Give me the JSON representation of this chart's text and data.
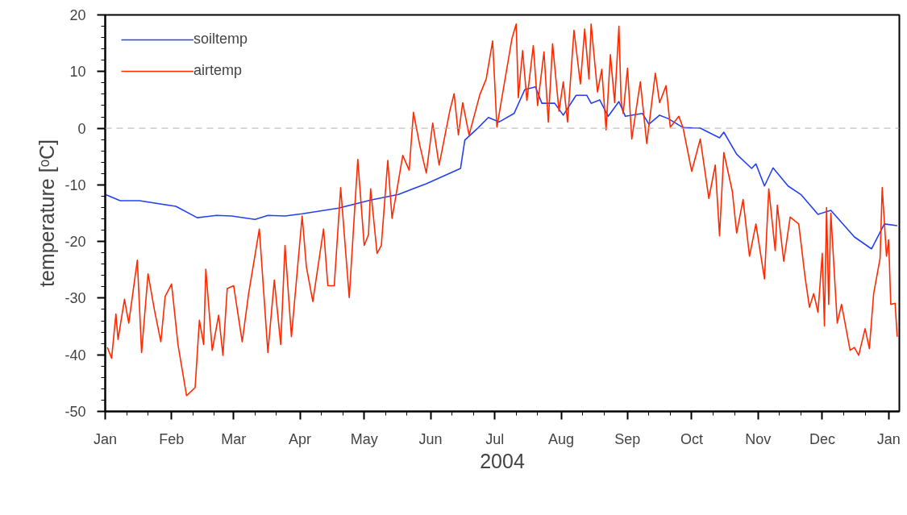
{
  "chart_data": {
    "type": "line",
    "xlabel": "2004",
    "ylabel": "temperature [ᵒC]",
    "xlim": [
      "2004-01-01",
      "2005-01-06"
    ],
    "ylim": [
      -50,
      20
    ],
    "xticks": [
      {
        "value": "2004-01-01",
        "label": "Jan"
      },
      {
        "value": "2004-01-11",
        "label": null
      },
      {
        "value": "2004-01-21",
        "label": null
      },
      {
        "value": "2004-02-01",
        "label": "Feb"
      },
      {
        "value": "2004-02-11",
        "label": null
      },
      {
        "value": "2004-02-21",
        "label": null
      },
      {
        "value": "2004-03-01",
        "label": "Mar"
      },
      {
        "value": "2004-03-11",
        "label": null
      },
      {
        "value": "2004-03-21",
        "label": null
      },
      {
        "value": "2004-04-01",
        "label": "Apr"
      },
      {
        "value": "2004-04-11",
        "label": null
      },
      {
        "value": "2004-04-21",
        "label": null
      },
      {
        "value": "2004-05-01",
        "label": "May"
      },
      {
        "value": "2004-05-11",
        "label": null
      },
      {
        "value": "2004-05-21",
        "label": null
      },
      {
        "value": "2004-06-01",
        "label": "Jun"
      },
      {
        "value": "2004-06-11",
        "label": null
      },
      {
        "value": "2004-06-21",
        "label": null
      },
      {
        "value": "2004-07-01",
        "label": "Jul"
      },
      {
        "value": "2004-07-11",
        "label": null
      },
      {
        "value": "2004-07-21",
        "label": null
      },
      {
        "value": "2004-08-01",
        "label": "Aug"
      },
      {
        "value": "2004-08-11",
        "label": null
      },
      {
        "value": "2004-08-21",
        "label": null
      },
      {
        "value": "2004-09-01",
        "label": "Sep"
      },
      {
        "value": "2004-09-11",
        "label": null
      },
      {
        "value": "2004-09-21",
        "label": null
      },
      {
        "value": "2004-10-01",
        "label": "Oct"
      },
      {
        "value": "2004-10-11",
        "label": null
      },
      {
        "value": "2004-10-21",
        "label": null
      },
      {
        "value": "2004-11-01",
        "label": "Nov"
      },
      {
        "value": "2004-11-11",
        "label": null
      },
      {
        "value": "2004-11-21",
        "label": null
      },
      {
        "value": "2004-12-01",
        "label": "Dec"
      },
      {
        "value": "2004-12-11",
        "label": null
      },
      {
        "value": "2004-12-21",
        "label": null
      },
      {
        "value": "2005-01-01",
        "label": "Jan"
      }
    ],
    "yticks": [
      -50,
      {
        "value": -48,
        "label": null
      },
      {
        "value": -46,
        "label": null
      },
      {
        "value": -44,
        "label": null
      },
      {
        "value": -42,
        "label": null
      },
      -40,
      {
        "value": -38,
        "label": null
      },
      {
        "value": -36,
        "label": null
      },
      {
        "value": -34,
        "label": null
      },
      {
        "value": -32,
        "label": null
      },
      -30,
      {
        "value": -28,
        "label": null
      },
      {
        "value": -26,
        "label": null
      },
      {
        "value": -24,
        "label": null
      },
      {
        "value": -22,
        "label": null
      },
      -20,
      {
        "value": -18,
        "label": null
      },
      {
        "value": -16,
        "label": null
      },
      {
        "value": -14,
        "label": null
      },
      {
        "value": -12,
        "label": null
      },
      -10,
      {
        "value": -8,
        "label": null
      },
      {
        "value": -6,
        "label": null
      },
      {
        "value": -4,
        "label": null
      },
      {
        "value": -2,
        "label": null
      },
      0,
      {
        "value": 2,
        "label": null
      },
      {
        "value": 4,
        "label": null
      },
      {
        "value": 6,
        "label": null
      },
      {
        "value": 8,
        "label": null
      },
      10,
      {
        "value": 12,
        "label": null
      },
      {
        "value": 14,
        "label": null
      },
      {
        "value": 16,
        "label": null
      },
      {
        "value": 18,
        "label": null
      },
      20
    ],
    "legend": "top left",
    "ref_lines": [
      {
        "axis": "y",
        "value": 0,
        "color": "#b0b0b0",
        "line_style": "dashed"
      }
    ],
    "series": [
      {
        "name": "soiltemp",
        "color": "#2440f5",
        "x": [
          "2004-01-01",
          "2004-01-08",
          "2004-01-17",
          "2004-02-03",
          "2004-02-13",
          "2004-02-22",
          "2004-02-29",
          "2004-03-11",
          "2004-03-17",
          "2004-03-25",
          "2004-04-02",
          "2004-04-19",
          "2004-05-04",
          "2004-05-17",
          "2004-05-30",
          "2004-06-15",
          "2004-06-17",
          "2004-06-23",
          "2004-06-28",
          "2004-07-03",
          "2004-07-10",
          "2004-07-15",
          "2004-07-20",
          "2004-07-23",
          "2004-07-29",
          "2004-08-02",
          "2004-08-08",
          "2004-08-13",
          "2004-08-15",
          "2004-08-19",
          "2004-08-23",
          "2004-08-28",
          "2004-08-31",
          "2004-09-08",
          "2004-09-11",
          "2004-09-16",
          "2004-09-20",
          "2004-09-27",
          "2004-10-05",
          "2004-10-14",
          "2004-10-16",
          "2004-10-22",
          "2004-10-29",
          "2004-10-31",
          "2004-11-04",
          "2004-11-08",
          "2004-11-15",
          "2004-11-21",
          "2004-11-29",
          "2004-12-05",
          "2004-12-16",
          "2004-12-24",
          "2004-12-30",
          "2005-01-05"
        ],
        "values": [
          -11.7,
          -12.8,
          -12.8,
          -13.8,
          -15.8,
          -15.4,
          -15.5,
          -16.1,
          -15.4,
          -15.5,
          -15.1,
          -14.1,
          -12.7,
          -11.7,
          -9.8,
          -7.1,
          -2.1,
          0,
          1.9,
          1.1,
          2.6,
          6.8,
          7.3,
          4.4,
          4.4,
          2.3,
          5.8,
          5.8,
          4.4,
          5.0,
          2.1,
          4.7,
          2.1,
          2.6,
          0.7,
          2.3,
          1.7,
          0.1,
          0,
          -1.7,
          -0.7,
          -4.6,
          -7.1,
          -6.3,
          -10.2,
          -7.0,
          -10.2,
          -11.7,
          -15.2,
          -14.5,
          -19.2,
          -21.3,
          -16.9,
          -17.2
        ]
      },
      {
        "name": "airtemp",
        "color": "#ff2a00",
        "x": [
          "2004-01-02",
          "2004-01-04",
          "2004-01-06",
          "2004-01-07",
          "2004-01-10",
          "2004-01-12",
          "2004-01-16",
          "2004-01-18",
          "2004-01-21",
          "2004-01-24",
          "2004-01-27",
          "2004-01-29",
          "2004-02-01",
          "2004-02-04",
          "2004-02-08",
          "2004-02-12",
          "2004-02-14",
          "2004-02-16",
          "2004-02-17",
          "2004-02-20",
          "2004-02-23",
          "2004-02-25",
          "2004-02-27",
          "2004-03-01",
          "2004-03-05",
          "2004-03-08",
          "2004-03-13",
          "2004-03-17",
          "2004-03-20",
          "2004-03-23",
          "2004-03-25",
          "2004-03-28",
          "2004-04-02",
          "2004-04-04",
          "2004-04-07",
          "2004-04-12",
          "2004-04-14",
          "2004-04-17",
          "2004-04-20",
          "2004-04-24",
          "2004-04-28",
          "2004-05-01",
          "2004-05-03",
          "2004-05-04",
          "2004-05-07",
          "2004-05-09",
          "2004-05-12",
          "2004-05-14",
          "2004-05-17",
          "2004-05-19",
          "2004-05-22",
          "2004-05-24",
          "2004-05-27",
          "2004-05-30",
          "2004-06-02",
          "2004-06-05",
          "2004-06-10",
          "2004-06-12",
          "2004-06-14",
          "2004-06-16",
          "2004-06-19",
          "2004-06-24",
          "2004-06-27",
          "2004-06-30",
          "2004-07-02",
          "2004-07-09",
          "2004-07-11",
          "2004-07-12",
          "2004-07-14",
          "2004-07-16",
          "2004-07-19",
          "2004-07-21",
          "2004-07-24",
          "2004-07-26",
          "2004-07-28",
          "2004-07-31",
          "2004-08-02",
          "2004-08-04",
          "2004-08-07",
          "2004-08-10",
          "2004-08-12",
          "2004-08-14",
          "2004-08-15",
          "2004-08-18",
          "2004-08-20",
          "2004-08-22",
          "2004-08-24",
          "2004-08-26",
          "2004-08-28",
          "2004-08-29",
          "2004-08-30",
          "2004-09-01",
          "2004-09-03",
          "2004-09-07",
          "2004-09-10",
          "2004-09-14",
          "2004-09-16",
          "2004-09-19",
          "2004-09-21",
          "2004-09-25",
          "2004-09-27",
          "2004-10-01",
          "2004-10-05",
          "2004-10-09",
          "2004-10-12",
          "2004-10-14",
          "2004-10-16",
          "2004-10-20",
          "2004-10-22",
          "2004-10-25",
          "2004-10-28",
          "2004-10-31",
          "2004-11-04",
          "2004-11-06",
          "2004-11-09",
          "2004-11-10",
          "2004-11-13",
          "2004-11-16",
          "2004-11-20",
          "2004-11-23",
          "2004-11-25",
          "2004-11-27",
          "2004-11-29",
          "2004-12-01",
          "2004-12-02",
          "2004-12-03",
          "2004-12-04",
          "2004-12-05",
          "2004-12-08",
          "2004-12-10",
          "2004-12-14",
          "2004-12-16",
          "2004-12-18",
          "2004-12-21",
          "2004-12-23",
          "2004-12-25",
          "2004-12-28",
          "2004-12-29",
          "2004-12-31",
          "2005-01-01",
          "2005-01-02",
          "2005-01-04",
          "2005-01-05"
        ],
        "values": [
          -38.7,
          -40.6,
          -32.8,
          -37.3,
          -30.2,
          -34.4,
          -23.3,
          -39.6,
          -25.7,
          -32.1,
          -37.7,
          -29.7,
          -27.5,
          -38.2,
          -47.2,
          -45.8,
          -33.9,
          -38.2,
          -24.9,
          -39.2,
          -33.0,
          -40.1,
          -28.3,
          -27.8,
          -37.7,
          -29.2,
          -17.8,
          -39.6,
          -26.8,
          -38.2,
          -20.7,
          -36.8,
          -15.5,
          -24.5,
          -30.6,
          -17.8,
          -27.8,
          -27.8,
          -10.5,
          -29.9,
          -5.5,
          -20.7,
          -18.8,
          -10.7,
          -22.1,
          -20.7,
          -5.7,
          -15.9,
          -9.3,
          -4.8,
          -7.4,
          2.8,
          -3.1,
          -7.9,
          0.9,
          -6.5,
          3.1,
          6.1,
          -1.2,
          4.5,
          -1.2,
          5.9,
          8.7,
          15.4,
          0.2,
          15.8,
          18.4,
          5.4,
          13.7,
          4.9,
          14.6,
          4.0,
          13.5,
          1.1,
          14.9,
          3.0,
          8.2,
          1.1,
          17.3,
          7.8,
          17.5,
          8.7,
          18.4,
          6.4,
          10.4,
          -0.3,
          13.0,
          4.5,
          18.0,
          4.9,
          2.6,
          10.6,
          -1.9,
          8.2,
          -2.7,
          9.7,
          4.5,
          7.5,
          0.2,
          2.1,
          0,
          -7.6,
          -1.9,
          -12.4,
          -6.5,
          -19.0,
          -4.3,
          -11.2,
          -18.5,
          -12.6,
          -22.6,
          -16.9,
          -26.6,
          -10.7,
          -21.6,
          -13.6,
          -23.5,
          -15.7,
          -16.9,
          -26.4,
          -31.6,
          -29.2,
          -32.5,
          -22.1,
          -34.9,
          -14.0,
          -31.1,
          -15.0,
          -34.4,
          -31.1,
          -39.2,
          -38.7,
          -40.1,
          -35.4,
          -38.9,
          -29.2,
          -23.0,
          -10.5,
          -22.6,
          -19.7,
          -31.1,
          -30.9,
          -36.8
        ]
      }
    ]
  }
}
